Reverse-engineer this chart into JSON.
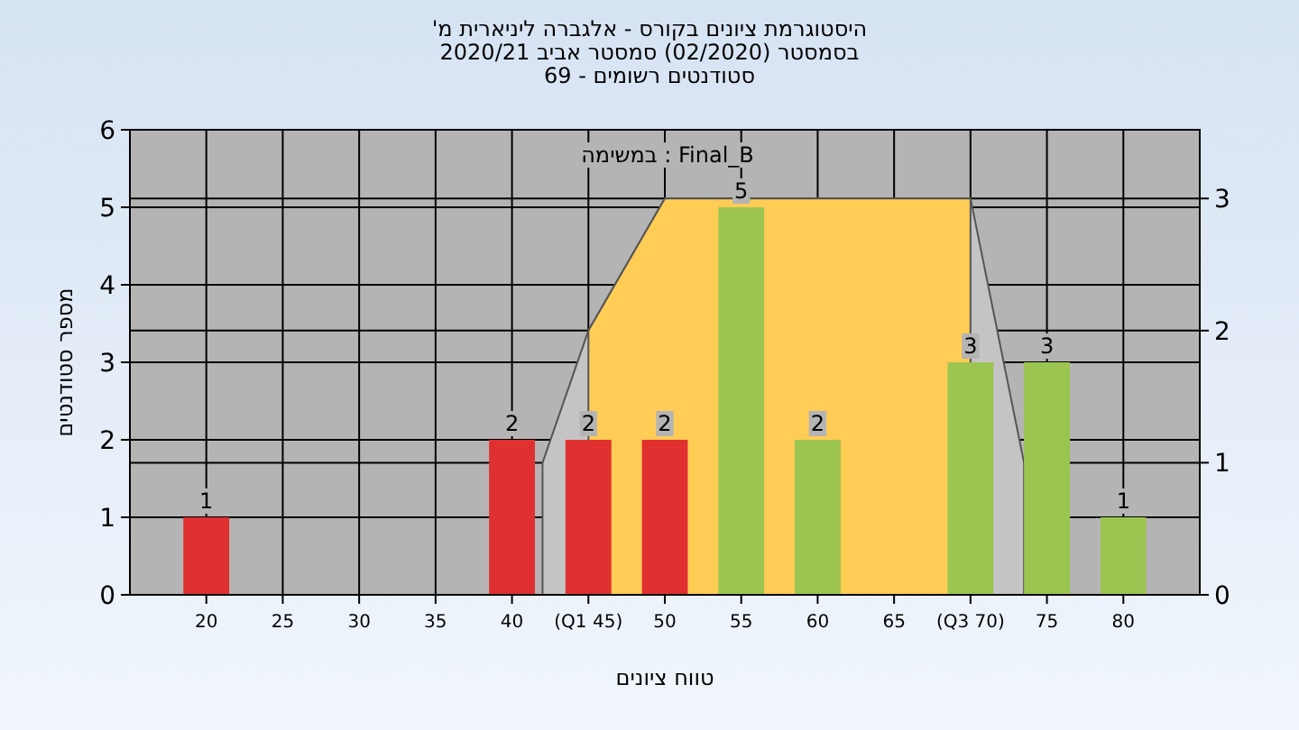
{
  "chart_data": {
    "type": "bar",
    "title": "היסטוגרמת ציונים בקורס - אלגברה ליניארית מ'",
    "subtitle": "בסמסטר  (02/2020)  סמסטר אביב 2020/21\nסטודנטים רשומים - 69",
    "xlabel": "טווח ציונים",
    "ylabel": "מספר סטודנטים",
    "annotations": [
      "במשימה : Final_B"
    ],
    "xlim": [
      15,
      85
    ],
    "xticks": [
      20,
      25,
      30,
      35,
      40,
      {
        "value": 45,
        "label": "(Q1 45)"
      },
      50,
      55,
      60,
      65,
      {
        "value": 70,
        "label": "(Q3 70)"
      },
      75,
      80
    ],
    "ylim": [
      0,
      6
    ],
    "yticks": [
      0,
      1,
      2,
      3,
      4,
      5,
      6
    ],
    "y2lim": [
      0,
      3.52
    ],
    "y2ticks": [
      0,
      1,
      2,
      3
    ],
    "grid": true,
    "series": [
      {
        "type": "area",
        "axis": "y2",
        "color": "#c4c4c4",
        "x": [
          42,
          45,
          50,
          70,
          73.5
        ],
        "values": [
          1,
          2,
          3,
          3,
          1
        ]
      },
      {
        "type": "area",
        "axis": "y2",
        "color": "#ffcc55",
        "x": [
          45,
          50,
          70
        ],
        "values": [
          2,
          3,
          3
        ]
      },
      {
        "x": [
          20,
          25,
          30,
          35,
          40,
          45,
          50,
          55,
          60,
          65,
          70,
          75,
          80
        ],
        "values": [
          1,
          0,
          0,
          0,
          2,
          2,
          2,
          5,
          2,
          0,
          3,
          3,
          1
        ],
        "colors": [
          "#e03030",
          "#e03030",
          "#e03030",
          "#e03030",
          "#e03030",
          "#e03030",
          "#e03030",
          "#9cc450",
          "#9cc450",
          "#9cc450",
          "#9cc450",
          "#9cc450",
          "#9cc450"
        ],
        "value_labels": [
          "1",
          null,
          null,
          null,
          "2",
          "2",
          "2",
          "5",
          "2",
          null,
          "3",
          "3",
          "1"
        ]
      }
    ]
  }
}
